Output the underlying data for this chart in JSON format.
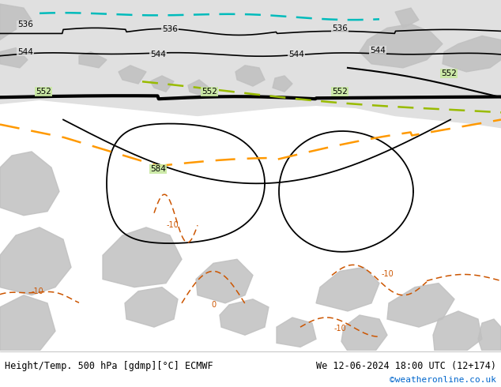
{
  "title_left": "Height/Temp. 500 hPa [gdmp][°C] ECMWF",
  "title_right": "We 12-06-2024 18:00 UTC (12+174)",
  "credit": "©weatheronline.co.uk",
  "credit_color": "#0066cc",
  "bg_green": "#c8e8a0",
  "bg_gray": "#e0e0e0",
  "land_color": "#c0c0c0",
  "black": "#000000",
  "cyan": "#00bbbb",
  "yellow_green": "#99bb00",
  "orange_dash": "#ff9900",
  "temp_orange": "#cc5500"
}
